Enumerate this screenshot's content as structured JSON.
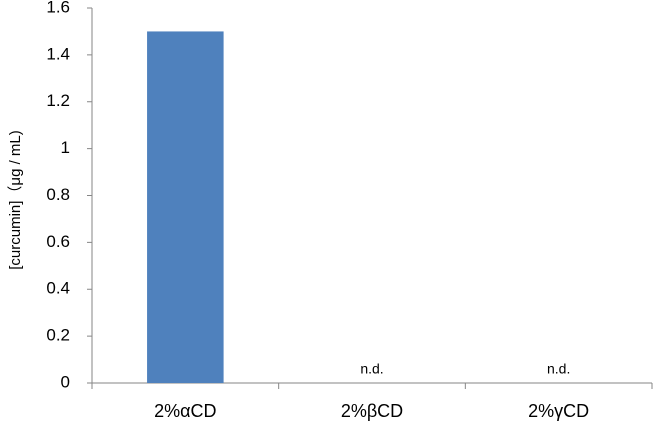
{
  "chart_data": {
    "type": "bar",
    "y_label": "[curcumin]（μg / mL)",
    "categories": [
      "2%αCD",
      "2%βCD",
      "2%γCD"
    ],
    "values": [
      1.5,
      null,
      null
    ],
    "value_labels": [
      null,
      "n.d.",
      "n.d."
    ],
    "color": "#4f81bd",
    "ylim": [
      0,
      1.6
    ],
    "yticks": [
      0,
      0.2,
      0.4,
      0.6,
      0.8,
      1,
      1.2,
      1.4,
      1.6
    ],
    "grid": false
  }
}
